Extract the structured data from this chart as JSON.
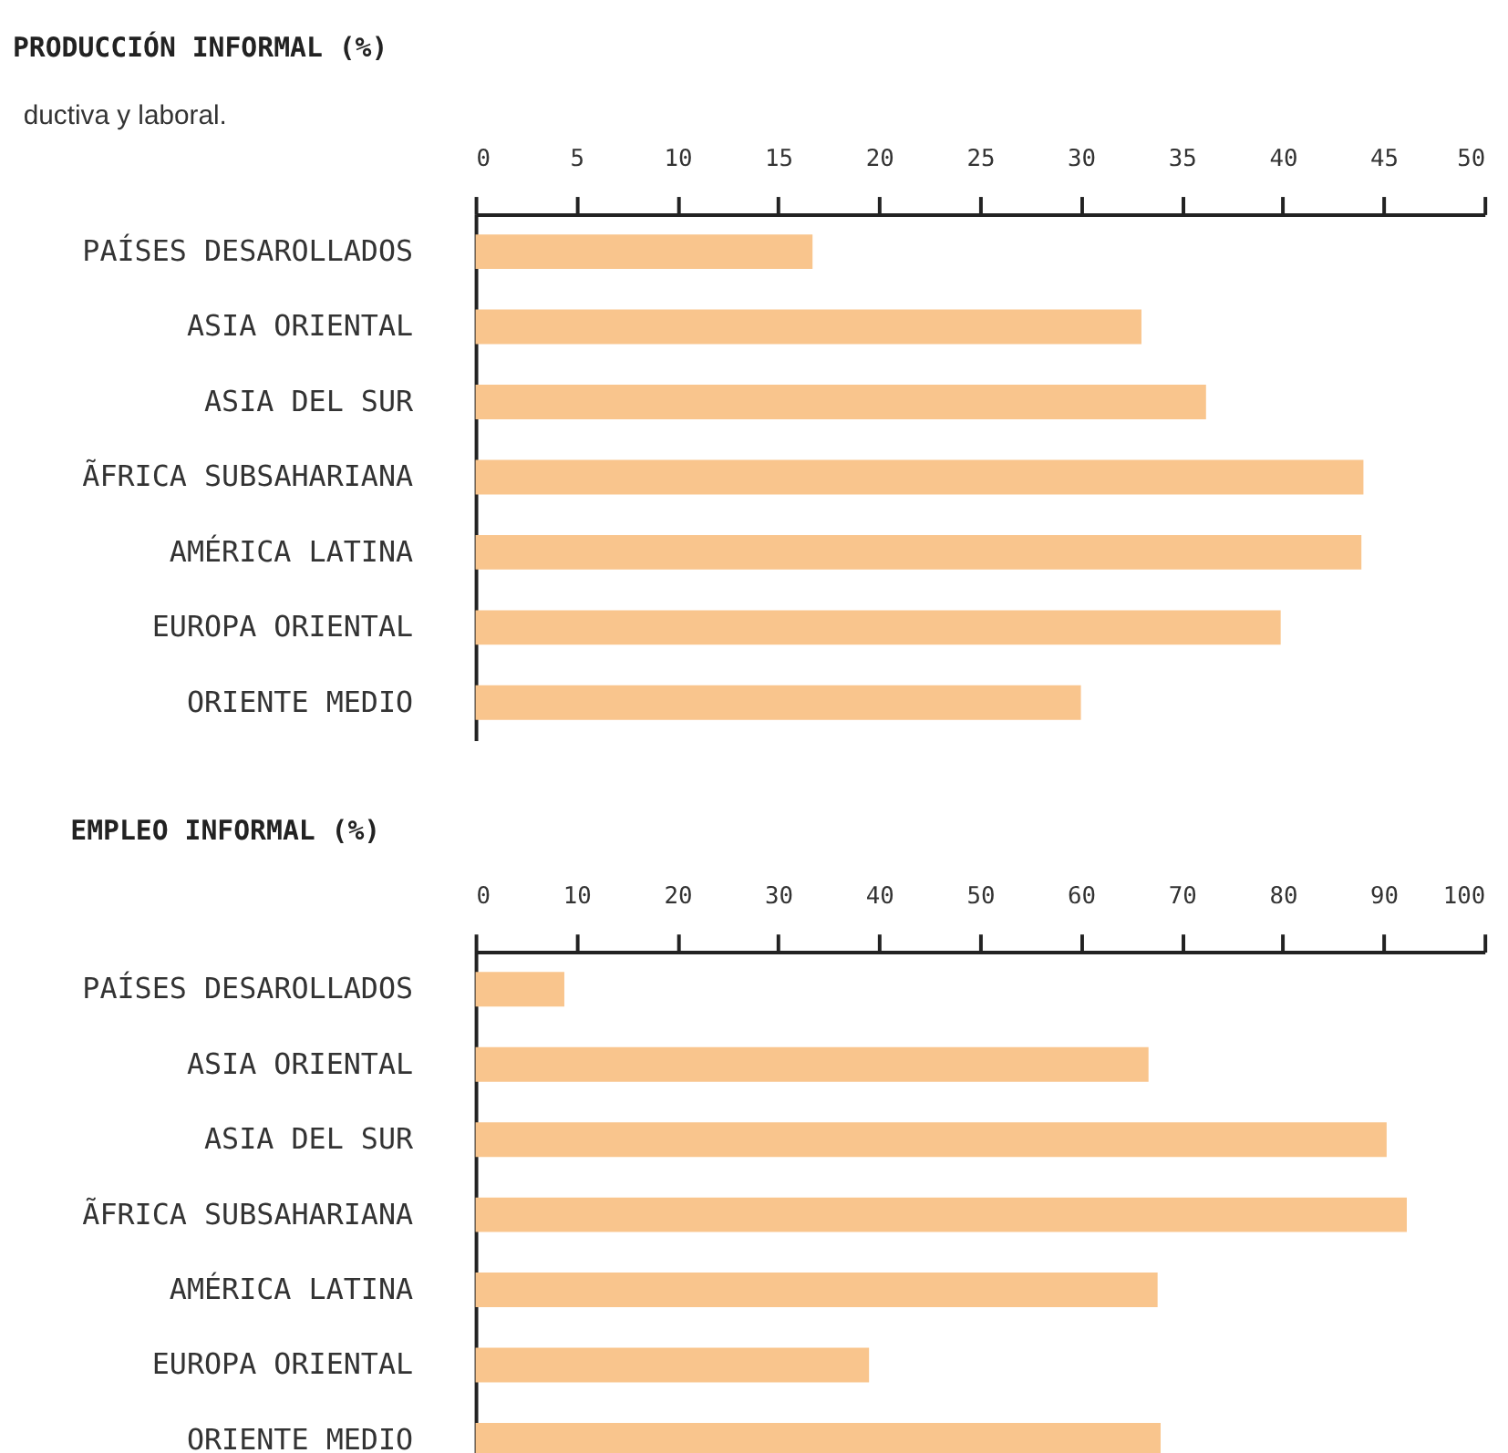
{
  "chart_data": [
    {
      "type": "bar",
      "orientation": "horizontal",
      "xlabel": "PRODUCCIÓN INFORMAL (%)",
      "annotations": [
        "ductiva y laboral."
      ],
      "categories": [
        "PAÍSES DESAROLLADOS",
        "ASIA ORIENTAL",
        "ASIA DEL SUR",
        "ÃFRICA SUBSAHARIANA",
        "AMÉRICA LATINA",
        "EUROPA ORIENTAL",
        "ORIENTE MEDIO"
      ],
      "values": [
        16.7,
        33.0,
        36.2,
        44.0,
        43.9,
        39.9,
        30.0
      ],
      "color": "#f9c58d",
      "xlim": [
        0,
        50
      ],
      "xticks": [
        0,
        5,
        10,
        15,
        20,
        25,
        30,
        35,
        40,
        45,
        50
      ]
    },
    {
      "type": "bar",
      "orientation": "horizontal",
      "xlabel": "EMPLEO INFORMAL (%)",
      "categories": [
        "PAÍSES DESAROLLADOS",
        "ASIA ORIENTAL",
        "ASIA DEL SUR",
        "ÃFRICA SUBSAHARIANA",
        "AMÉRICA LATINA",
        "EUROPA ORIENTAL",
        "ORIENTE MEDIO"
      ],
      "values": [
        8.8,
        66.7,
        90.3,
        92.3,
        67.6,
        39.0,
        67.9
      ],
      "color": "#f9c58d",
      "xlim": [
        0,
        100
      ],
      "xticks": [
        0,
        10,
        20,
        30,
        40,
        50,
        60,
        70,
        80,
        90,
        100
      ]
    }
  ]
}
